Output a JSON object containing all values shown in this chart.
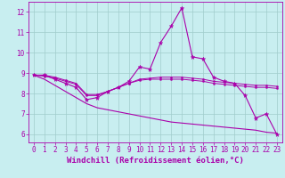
{
  "background_color": "#c8eef0",
  "grid_color": "#a0cccc",
  "line_color": "#aa00aa",
  "xlim": [
    -0.5,
    23.5
  ],
  "ylim": [
    5.6,
    12.5
  ],
  "yticks": [
    6,
    7,
    8,
    9,
    10,
    11,
    12
  ],
  "xticks": [
    0,
    1,
    2,
    3,
    4,
    5,
    6,
    7,
    8,
    9,
    10,
    11,
    12,
    13,
    14,
    15,
    16,
    17,
    18,
    19,
    20,
    21,
    22,
    23
  ],
  "xlabel": "Windchill (Refroidissement éolien,°C)",
  "series": [
    {
      "x": [
        0,
        1,
        2,
        3,
        4,
        5,
        6,
        7,
        8,
        9,
        10,
        11,
        12,
        13,
        14,
        15,
        16,
        17,
        18,
        19,
        20,
        21,
        22,
        23
      ],
      "y": [
        8.9,
        8.9,
        8.7,
        8.5,
        8.3,
        7.7,
        7.8,
        8.1,
        8.3,
        8.6,
        9.3,
        9.2,
        10.5,
        11.3,
        12.2,
        9.8,
        9.7,
        8.8,
        8.6,
        8.5,
        7.9,
        6.8,
        7.0,
        6.0
      ],
      "marker": "*",
      "markersize": 3.5,
      "linewidth": 0.8
    },
    {
      "x": [
        0,
        1,
        2,
        3,
        4,
        5,
        6,
        7,
        8,
        9,
        10,
        11,
        12,
        13,
        14,
        15,
        16,
        17,
        18,
        19,
        20,
        21,
        22,
        23
      ],
      "y": [
        8.9,
        8.85,
        8.75,
        8.6,
        8.45,
        7.9,
        7.9,
        8.1,
        8.3,
        8.5,
        8.7,
        8.75,
        8.8,
        8.8,
        8.8,
        8.75,
        8.7,
        8.6,
        8.55,
        8.5,
        8.45,
        8.4,
        8.4,
        8.35
      ],
      "marker": "o",
      "markersize": 1.5,
      "linewidth": 0.7
    },
    {
      "x": [
        0,
        1,
        2,
        3,
        4,
        5,
        6,
        7,
        8,
        9,
        10,
        11,
        12,
        13,
        14,
        15,
        16,
        17,
        18,
        19,
        20,
        21,
        22,
        23
      ],
      "y": [
        8.9,
        8.9,
        8.8,
        8.65,
        8.5,
        7.95,
        7.95,
        8.1,
        8.3,
        8.5,
        8.65,
        8.7,
        8.7,
        8.7,
        8.7,
        8.65,
        8.6,
        8.5,
        8.45,
        8.4,
        8.35,
        8.3,
        8.3,
        8.25
      ],
      "marker": "o",
      "markersize": 1.5,
      "linewidth": 0.7
    },
    {
      "x": [
        0,
        1,
        2,
        3,
        4,
        5,
        6,
        7,
        8,
        9,
        10,
        11,
        12,
        13,
        14,
        15,
        16,
        17,
        18,
        19,
        20,
        21,
        22,
        23
      ],
      "y": [
        8.9,
        8.7,
        8.4,
        8.1,
        7.8,
        7.5,
        7.3,
        7.2,
        7.1,
        7.0,
        6.9,
        6.8,
        6.7,
        6.6,
        6.55,
        6.5,
        6.45,
        6.4,
        6.35,
        6.3,
        6.25,
        6.2,
        6.1,
        6.05
      ],
      "marker": null,
      "markersize": 0,
      "linewidth": 0.8
    }
  ],
  "tick_fontsize": 5.5,
  "xlabel_fontsize": 6.5
}
